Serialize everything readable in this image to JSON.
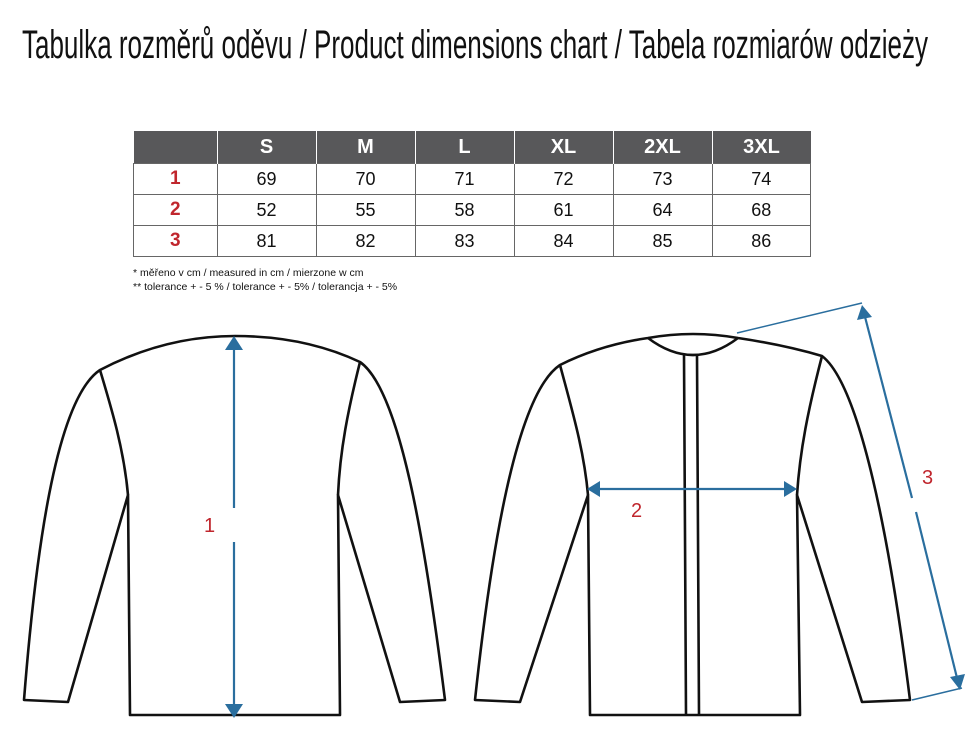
{
  "title": "Tabulka rozměrů oděvu / Product dimensions chart / Tabela rozmiarów odzieży",
  "table": {
    "columns": [
      "",
      "S",
      "M",
      "L",
      "XL",
      "2XL",
      "3XL"
    ],
    "rows": [
      {
        "label": "1",
        "values": [
          "69",
          "70",
          "71",
          "72",
          "73",
          "74"
        ]
      },
      {
        "label": "2",
        "values": [
          "52",
          "55",
          "58",
          "61",
          "64",
          "68"
        ]
      },
      {
        "label": "3",
        "values": [
          "81",
          "82",
          "83",
          "84",
          "85",
          "86"
        ]
      }
    ]
  },
  "notes": [
    "* měřeno v cm / measured in cm / mierzone w cm",
    "** tolerance + - 5 % / tolerance + - 5% / tolerancja + - 5%"
  ],
  "diagram": {
    "labels": [
      "1",
      "2",
      "3"
    ],
    "colors": {
      "arrow": "#2a6e9e",
      "label": "#c0262d",
      "header": "#58585a"
    }
  }
}
